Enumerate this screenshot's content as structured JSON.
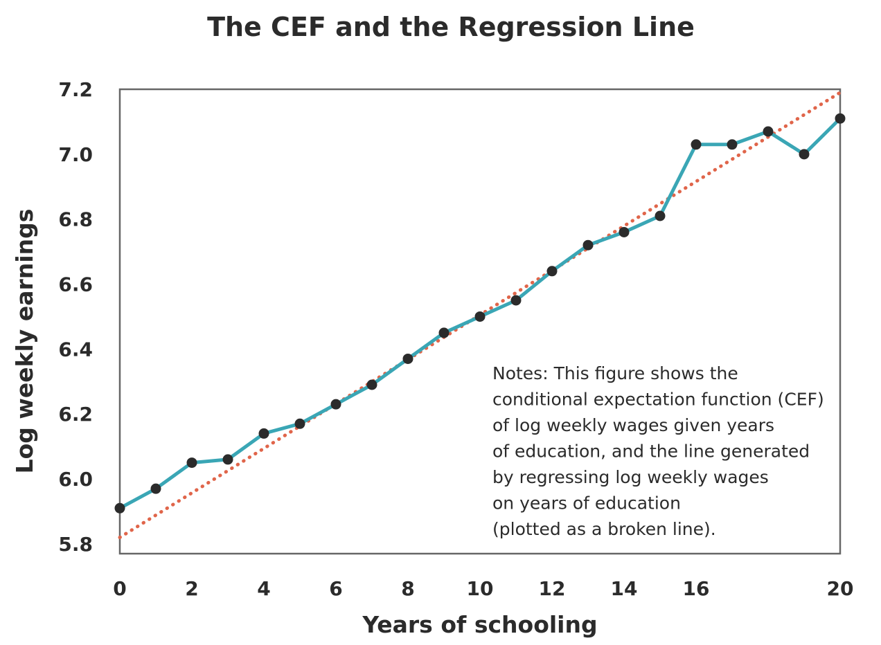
{
  "chart_data": {
    "type": "line",
    "title": "The CEF and the Regression Line",
    "xlabel": "Years of schooling",
    "ylabel": "Log weekly earnings",
    "xlim": [
      0,
      20
    ],
    "ylim": [
      5.77,
      7.2
    ],
    "x_ticks": [
      "0",
      "2",
      "4",
      "6",
      "8",
      "10",
      "12",
      "14",
      "16",
      "20"
    ],
    "x_tick_values": [
      0,
      2,
      4,
      6,
      8,
      10,
      12,
      14,
      16,
      20
    ],
    "y_ticks": [
      "7.2",
      "7.0",
      "6.8",
      "6.6",
      "6.4",
      "6.2",
      "6.0",
      "5.8"
    ],
    "y_tick_values": [
      7.2,
      7.0,
      6.8,
      6.6,
      6.4,
      6.2,
      6.0,
      5.8
    ],
    "grid": false,
    "series": [
      {
        "type": "line",
        "color": "#3aa6b5",
        "marker_color": "#2b2b2b",
        "x": [
          0,
          1,
          2,
          3,
          4,
          5,
          6,
          7,
          8,
          9,
          10,
          11,
          12,
          13,
          14,
          15,
          16,
          17,
          18,
          19,
          20
        ],
        "y": [
          5.91,
          5.97,
          6.05,
          6.06,
          6.14,
          6.17,
          6.23,
          6.29,
          6.37,
          6.45,
          6.5,
          6.55,
          6.64,
          6.72,
          6.76,
          6.81,
          7.03,
          7.03,
          7.07,
          7.0,
          7.11
        ]
      },
      {
        "type": "line",
        "style": "dotted",
        "color": "#e0654a",
        "x": [
          0,
          20
        ],
        "y": [
          5.82,
          7.19
        ]
      }
    ],
    "annotations": [
      {
        "lines": [
          "Notes: This figure shows the",
          "conditional expectation function (CEF)",
          "of log weekly wages given years",
          "of education, and the line generated",
          "by regressing log weekly wages",
          "on years of education",
          "(plotted as a broken line)."
        ]
      }
    ]
  }
}
